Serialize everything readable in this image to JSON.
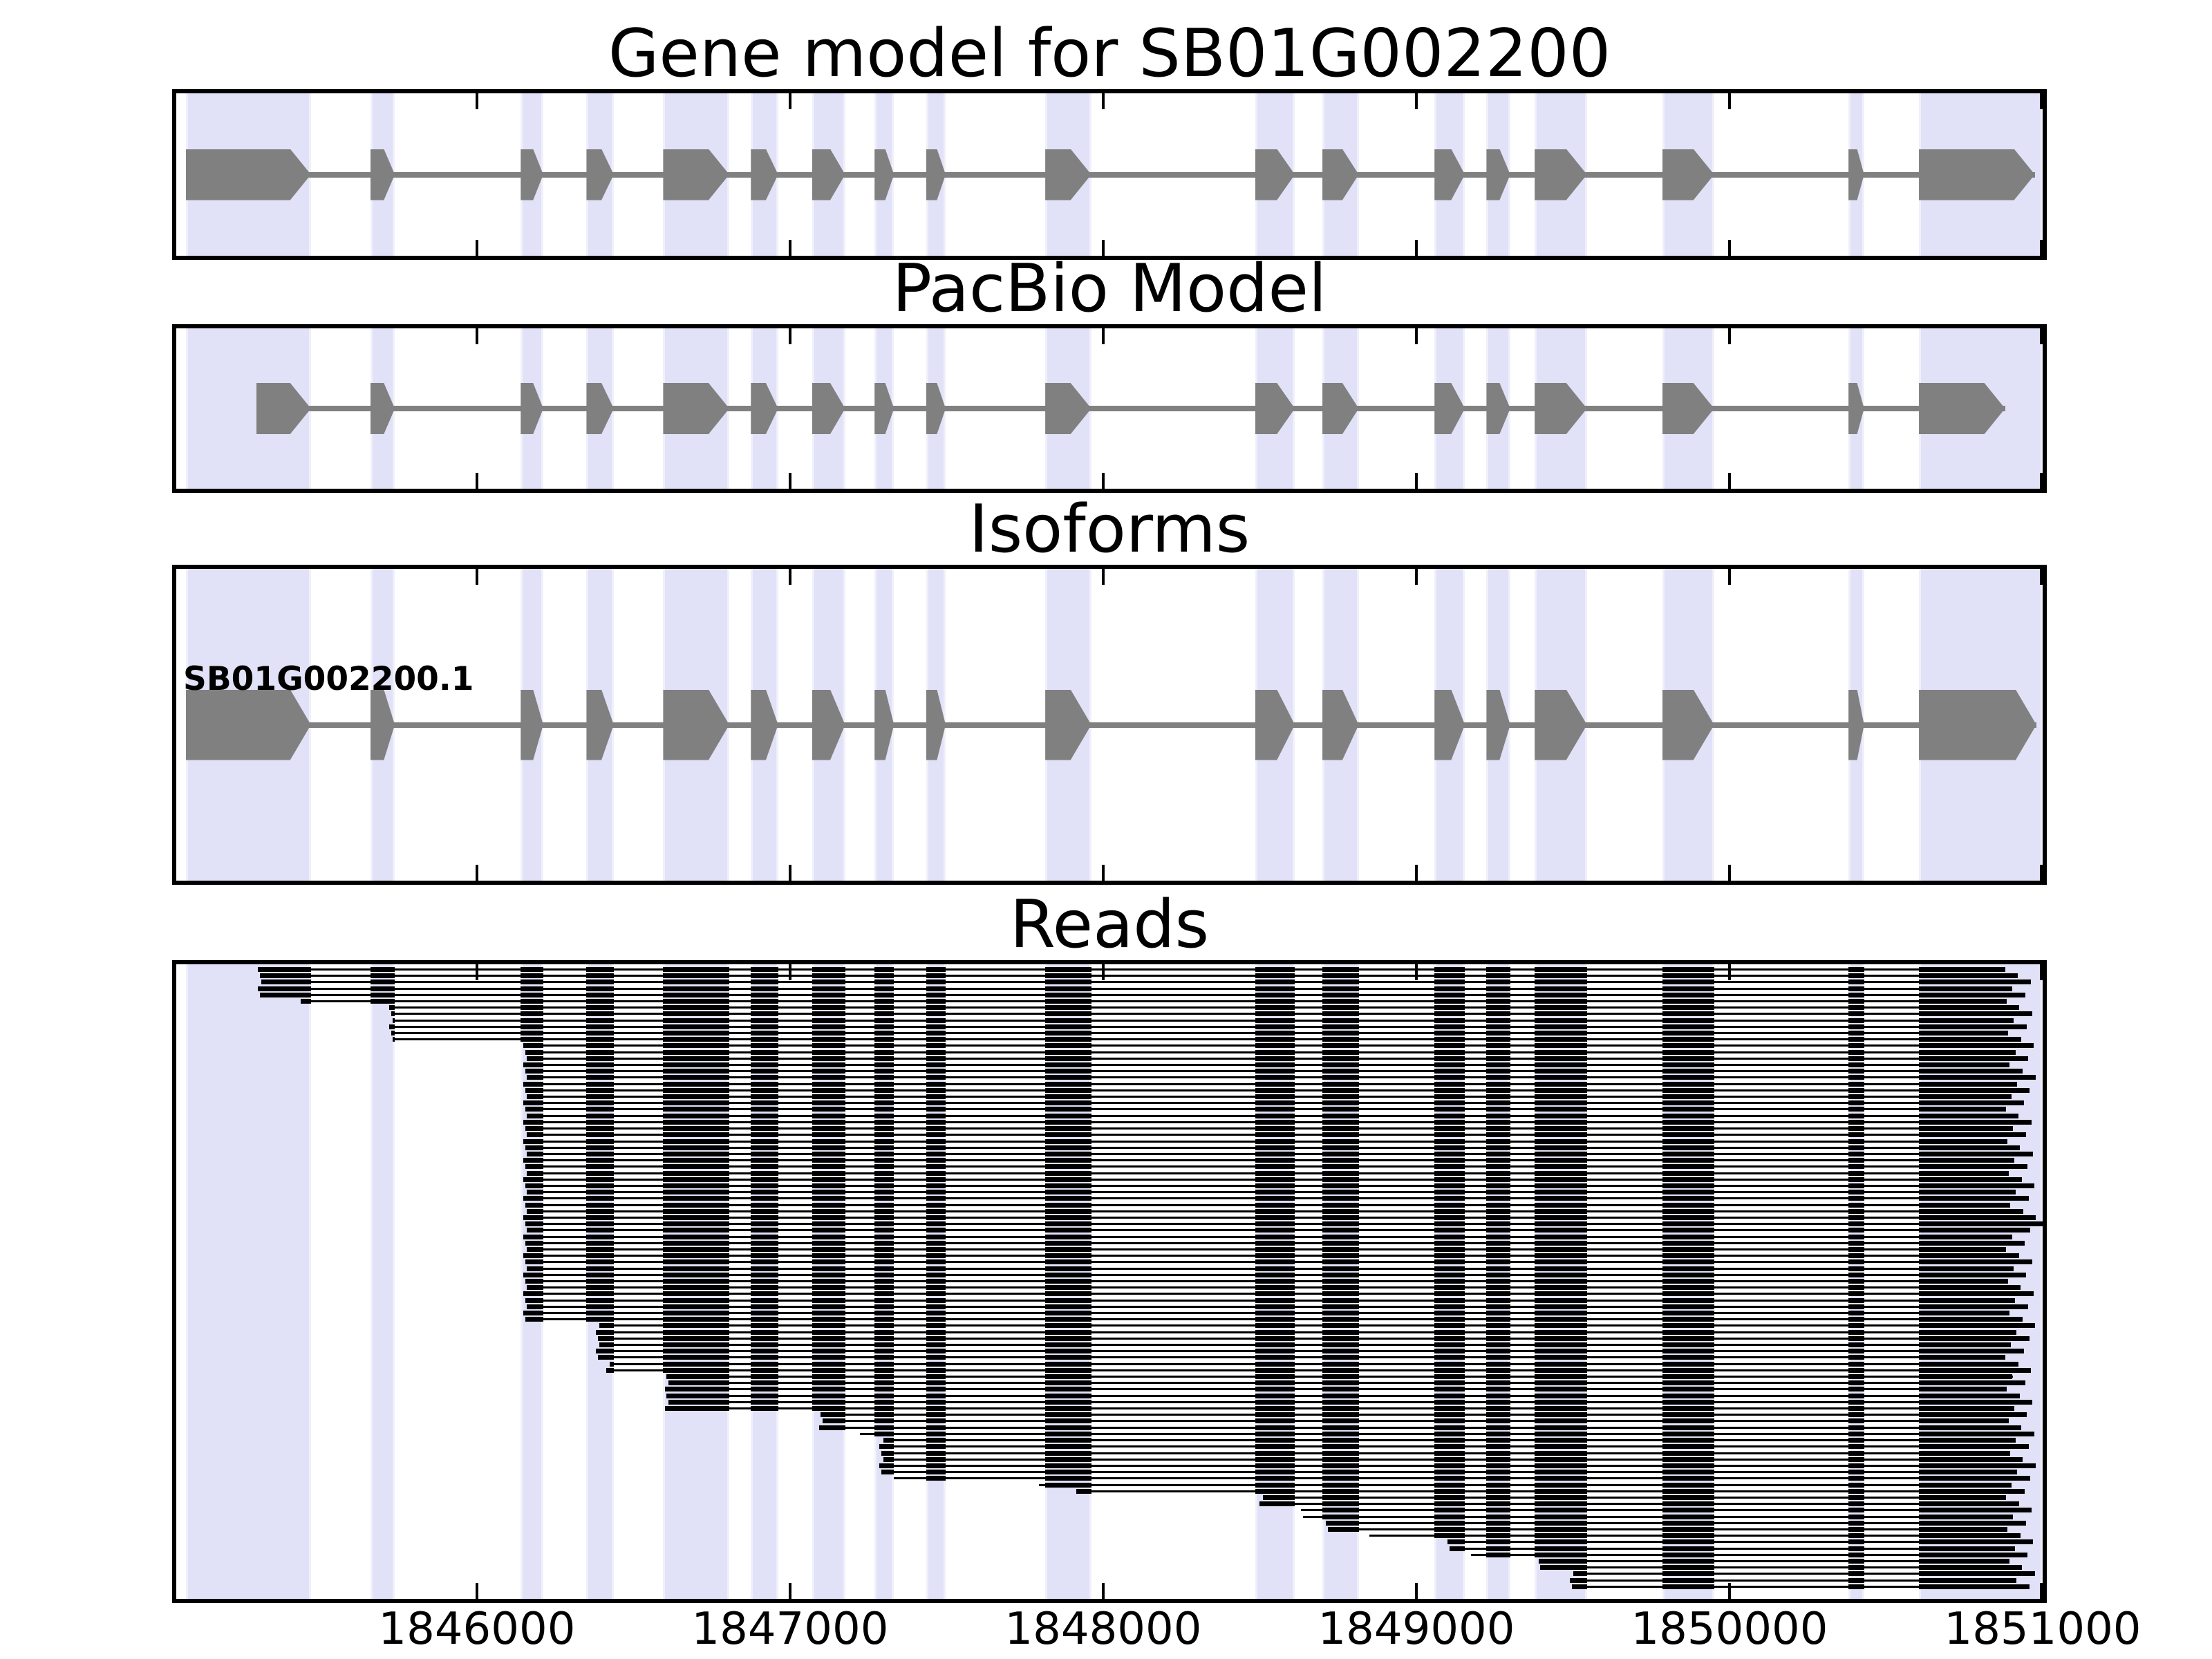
{
  "figure": {
    "background": "#ffffff",
    "border_color": "#000000",
    "exon_color": "#808080",
    "intron_color": "#808080",
    "read_color": "#000000",
    "band_fill": "#e1e1f8",
    "band_edge": "#f0f0fb"
  },
  "chart_data": {
    "type": "genome-tracks",
    "xlim": [
      1845040,
      1851000
    ],
    "tick_values": [
      1846000,
      1847000,
      1848000,
      1849000,
      1850000,
      1851000
    ],
    "tick_labels": [
      "1846000",
      "1847000",
      "1848000",
      "1849000",
      "1850000",
      "1851000"
    ],
    "exons": [
      [
        1845070,
        1845470
      ],
      [
        1845660,
        1845738
      ],
      [
        1846140,
        1846212
      ],
      [
        1846350,
        1846437
      ],
      [
        1846595,
        1846806
      ],
      [
        1846875,
        1846962
      ],
      [
        1847070,
        1847176
      ],
      [
        1847270,
        1847332
      ],
      [
        1847435,
        1847497
      ],
      [
        1847815,
        1847962
      ],
      [
        1848485,
        1848612
      ],
      [
        1848700,
        1848816
      ],
      [
        1849058,
        1849155
      ],
      [
        1849224,
        1849300
      ],
      [
        1849378,
        1849545
      ],
      [
        1849786,
        1849951
      ],
      [
        1850380,
        1850430
      ],
      [
        1850605,
        1850980
      ]
    ],
    "bands": [
      [
        1845070,
        1845470
      ],
      [
        1845660,
        1845738
      ],
      [
        1846140,
        1846212
      ],
      [
        1846350,
        1846437
      ],
      [
        1846595,
        1846806
      ],
      [
        1846875,
        1846962
      ],
      [
        1847070,
        1847176
      ],
      [
        1847270,
        1847332
      ],
      [
        1847435,
        1847497
      ],
      [
        1847815,
        1847962
      ],
      [
        1848485,
        1848612
      ],
      [
        1848700,
        1848816
      ],
      [
        1849058,
        1849155
      ],
      [
        1849224,
        1849300
      ],
      [
        1849378,
        1849545
      ],
      [
        1849786,
        1849951
      ],
      [
        1850380,
        1850430
      ],
      [
        1850605,
        1851000
      ]
    ],
    "panels": [
      {
        "kind": "model",
        "title": "Gene model for SB01G002200",
        "first_exon_start": 1845070,
        "last_exon_end": 1850975,
        "exon_height": 74
      },
      {
        "kind": "model",
        "title": "PacBio Model",
        "first_exon_start": 1845295,
        "last_exon_end": 1850880,
        "exon_height": 74
      },
      {
        "kind": "model",
        "title": "Isoforms",
        "isoform_label": "SB01G002200.1",
        "first_exon_start": 1845070,
        "last_exon_end": 1850980,
        "exon_height": 102
      },
      {
        "kind": "reads",
        "title": "Reads",
        "read_groups": [
          [
            1845300,
            5
          ],
          [
            1845425,
            1
          ],
          [
            1845720,
            6
          ],
          [
            1846148,
            44
          ],
          [
            1846380,
            6
          ],
          [
            1846412,
            2
          ],
          [
            1846600,
            6
          ],
          [
            1847092,
            3
          ],
          [
            1847218,
            1
          ],
          [
            1847286,
            6
          ],
          [
            1847320,
            1
          ],
          [
            1847795,
            1
          ],
          [
            1847907,
            1
          ],
          [
            1848498,
            2
          ],
          [
            1848625,
            2
          ],
          [
            1848712,
            2
          ],
          [
            1848837,
            1
          ],
          [
            1849100,
            2
          ],
          [
            1849163,
            1
          ],
          [
            1849390,
            2
          ],
          [
            1849490,
            3
          ]
        ],
        "read_end_base": 1850880,
        "read_end_jitter_range": 100,
        "full_width_row": 40
      }
    ]
  }
}
